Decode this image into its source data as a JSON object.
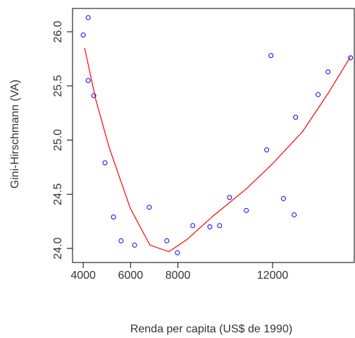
{
  "chart_data": {
    "type": "scatter",
    "x_label": "Renda per capita (US$ de 1990)",
    "y_label": "Gini-Hirschmann (VA)",
    "xlim": [
      3550,
      15450
    ],
    "ylim": [
      23.87,
      26.215
    ],
    "xticks": [
      4000,
      6000,
      8000,
      12000
    ],
    "yticks": [
      {
        "value": 24,
        "label": "24.0"
      },
      24.5,
      {
        "value": 25,
        "label": "25.0"
      },
      25.5,
      {
        "value": 26,
        "label": "26.0"
      }
    ],
    "series": [
      {
        "type": "scatter",
        "color": "#0000ff",
        "x": [
          4000,
          4210,
          4210,
          4445,
          4920,
          5280,
          5600,
          6170,
          6790,
          7530,
          7980,
          8630,
          9350,
          9760,
          10180,
          10890,
          11750,
          11930,
          12460,
          12910,
          12970,
          13920,
          14340,
          15290
        ],
        "values": [
          25.97,
          26.13,
          25.55,
          25.41,
          24.79,
          24.29,
          24.07,
          24.03,
          24.38,
          24.07,
          23.96,
          24.21,
          24.2,
          24.21,
          24.47,
          24.35,
          24.91,
          25.78,
          24.46,
          24.31,
          25.21,
          25.42,
          25.63,
          25.76
        ]
      },
      {
        "type": "line",
        "color": "#ff0000",
        "x": [
          4060,
          4535,
          5100,
          5990,
          6820,
          7620,
          8370,
          9490,
          10890,
          11990,
          13270,
          14340,
          15290
        ],
        "values": [
          25.85,
          25.37,
          24.93,
          24.37,
          24.03,
          23.97,
          24.08,
          24.3,
          24.55,
          24.78,
          25.08,
          25.43,
          25.77
        ]
      }
    ]
  }
}
